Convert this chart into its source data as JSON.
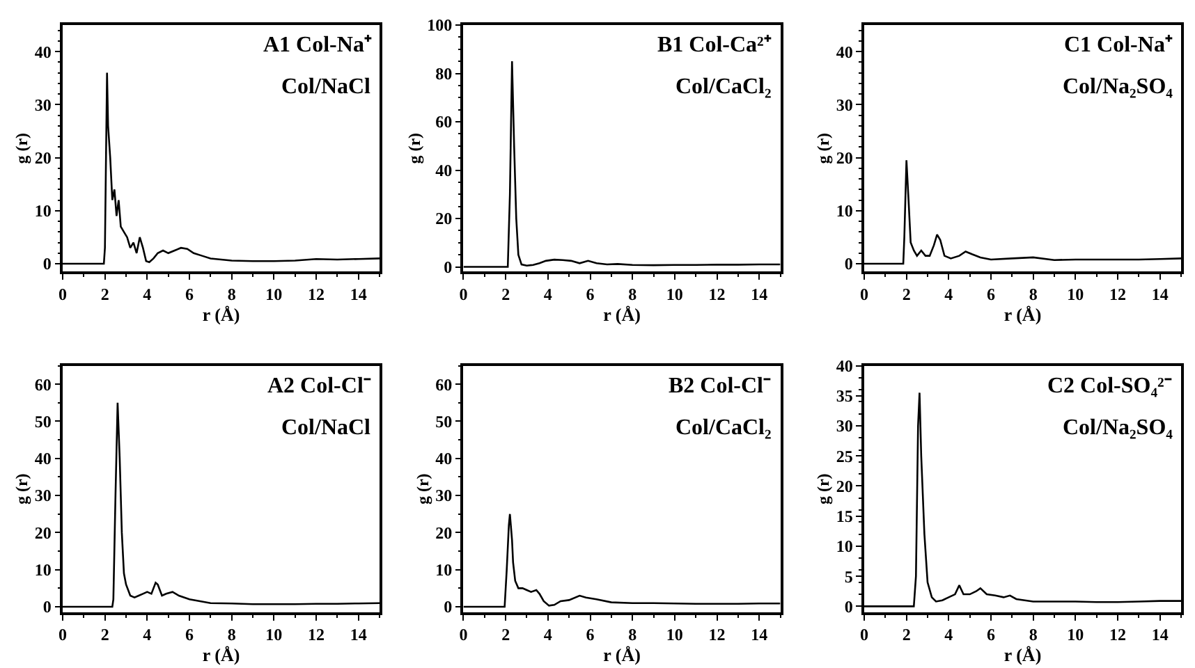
{
  "chart_data": [
    {
      "type": "line",
      "annotations": [
        "A1 Col-Na⁺",
        "Col/NaCl"
      ],
      "xlabel": "r (Å)",
      "ylabel": "g (r)",
      "xlim": [
        0,
        15
      ],
      "xticks": [
        0,
        2,
        4,
        6,
        8,
        10,
        12,
        14
      ],
      "ylim": [
        -1.5,
        45
      ],
      "yticks": [
        0,
        10,
        20,
        30,
        40
      ],
      "x": [
        0,
        1.95,
        2.0,
        2.1,
        2.15,
        2.25,
        2.35,
        2.45,
        2.55,
        2.65,
        2.75,
        2.9,
        3.05,
        3.2,
        3.35,
        3.5,
        3.65,
        3.8,
        3.95,
        4.1,
        4.3,
        4.5,
        4.75,
        5.0,
        5.3,
        5.6,
        5.9,
        6.2,
        6.6,
        7.0,
        7.5,
        8.0,
        9,
        10,
        11,
        12,
        13,
        14,
        15
      ],
      "series": [
        {
          "color": "#000000",
          "values": [
            0,
            0,
            3,
            36,
            26,
            20,
            12,
            14,
            9,
            12,
            7,
            6,
            5,
            3,
            4,
            2,
            5,
            3,
            0.5,
            0.3,
            1,
            2,
            2.5,
            2,
            2.5,
            3,
            2.8,
            2,
            1.5,
            1,
            0.8,
            0.6,
            0.5,
            0.5,
            0.6,
            0.9,
            0.8,
            0.9,
            1.0
          ]
        }
      ]
    },
    {
      "type": "line",
      "annotations": [
        "B1 Col-Ca²⁺",
        "Col/CaCl₂"
      ],
      "xlabel": "r (Å)",
      "ylabel": "g (r)",
      "xlim": [
        0,
        15
      ],
      "xticks": [
        0,
        2,
        4,
        6,
        8,
        10,
        12,
        14
      ],
      "ylim": [
        -2,
        100
      ],
      "yticks": [
        0,
        20,
        40,
        60,
        80,
        100
      ],
      "x": [
        0,
        2.1,
        2.2,
        2.3,
        2.4,
        2.5,
        2.6,
        2.75,
        3.0,
        3.3,
        3.6,
        3.9,
        4.3,
        4.7,
        5.1,
        5.5,
        5.9,
        6.3,
        6.8,
        7.3,
        8,
        9,
        10,
        11,
        12,
        13,
        14,
        15
      ],
      "series": [
        {
          "color": "#000000",
          "values": [
            0,
            0,
            30,
            85,
            50,
            20,
            5,
            1,
            0.5,
            0.8,
            1.5,
            2.5,
            3,
            2.8,
            2.5,
            1.5,
            2.5,
            1.5,
            1,
            1.2,
            0.8,
            0.7,
            0.8,
            0.8,
            0.9,
            0.9,
            1,
            1
          ]
        }
      ]
    },
    {
      "type": "line",
      "annotations": [
        "C1 Col-Na⁺",
        "Col/Na₂SO₄"
      ],
      "xlabel": "r (Å)",
      "ylabel": "g (r)",
      "xlim": [
        0,
        15
      ],
      "xticks": [
        0,
        2,
        4,
        6,
        8,
        10,
        12,
        14
      ],
      "ylim": [
        -1.5,
        45
      ],
      "yticks": [
        0,
        10,
        20,
        30,
        40
      ],
      "x": [
        0,
        1.85,
        1.9,
        2.0,
        2.1,
        2.2,
        2.35,
        2.5,
        2.7,
        2.9,
        3.1,
        3.3,
        3.45,
        3.6,
        3.8,
        4.1,
        4.5,
        4.8,
        5.1,
        5.5,
        6,
        7,
        8,
        9,
        10,
        11,
        12,
        13,
        14,
        15
      ],
      "series": [
        {
          "color": "#000000",
          "values": [
            0,
            0,
            5,
            19.5,
            12,
            4,
            2.5,
            1.5,
            2.5,
            1.5,
            1.5,
            3.5,
            5.5,
            4.5,
            1.5,
            1,
            1.5,
            2.3,
            1.8,
            1.2,
            0.8,
            1,
            1.2,
            0.7,
            0.8,
            0.8,
            0.8,
            0.8,
            0.9,
            1
          ]
        }
      ]
    },
    {
      "type": "line",
      "annotations": [
        "A2 Col-Cl⁻",
        "Col/NaCl"
      ],
      "xlabel": "r (Å)",
      "ylabel": "g (r)",
      "xlim": [
        0,
        15
      ],
      "xticks": [
        0,
        2,
        4,
        6,
        8,
        10,
        12,
        14
      ],
      "ylim": [
        -1.5,
        65
      ],
      "yticks": [
        0,
        10,
        20,
        30,
        40,
        50,
        60
      ],
      "x": [
        0,
        2.35,
        2.4,
        2.5,
        2.6,
        2.7,
        2.8,
        2.9,
        3.0,
        3.2,
        3.4,
        3.6,
        3.8,
        4.0,
        4.2,
        4.4,
        4.5,
        4.7,
        4.9,
        5.2,
        5.5,
        6,
        6.5,
        7,
        8,
        9,
        10,
        11,
        12,
        13,
        14,
        15
      ],
      "series": [
        {
          "color": "#000000",
          "values": [
            0,
            0,
            2,
            30,
            55,
            40,
            20,
            9,
            6,
            3,
            2.5,
            3,
            3.5,
            4,
            3.5,
            6.5,
            6,
            3,
            3.5,
            4,
            3,
            2,
            1.5,
            1,
            0.9,
            0.7,
            0.7,
            0.7,
            0.8,
            0.8,
            0.9,
            1
          ]
        }
      ]
    },
    {
      "type": "line",
      "annotations": [
        "B2 Col-Cl⁻",
        "Col/CaCl₂"
      ],
      "xlabel": "r (Å)",
      "ylabel": "g (r)",
      "xlim": [
        0,
        15
      ],
      "xticks": [
        0,
        2,
        4,
        6,
        8,
        10,
        12,
        14
      ],
      "ylim": [
        -1.5,
        65
      ],
      "yticks": [
        0,
        10,
        20,
        30,
        40,
        50,
        60
      ],
      "x": [
        0,
        1.95,
        2.05,
        2.15,
        2.2,
        2.3,
        2.35,
        2.45,
        2.6,
        2.8,
        3.0,
        3.2,
        3.45,
        3.6,
        3.8,
        4.05,
        4.3,
        4.6,
        5.0,
        5.5,
        5.8,
        6.3,
        7,
        8,
        9,
        10,
        11,
        12,
        13,
        14,
        15
      ],
      "series": [
        {
          "color": "#000000",
          "values": [
            0,
            0,
            10,
            22,
            25,
            18,
            12,
            7,
            5,
            5,
            4.5,
            4,
            4.5,
            3.5,
            1.5,
            0.3,
            0.5,
            1.5,
            1.8,
            3,
            2.5,
            2,
            1.2,
            1,
            1,
            0.9,
            0.8,
            0.8,
            0.8,
            0.9,
            0.9
          ]
        }
      ]
    },
    {
      "type": "line",
      "annotations": [
        "C2 Col-SO₄²⁻",
        "Col/Na₂SO₄"
      ],
      "xlabel": "r (Å)",
      "ylabel": "g (r)",
      "xlim": [
        0,
        15
      ],
      "xticks": [
        0,
        2,
        4,
        6,
        8,
        10,
        12,
        14
      ],
      "ylim": [
        -1,
        40
      ],
      "yticks": [
        0,
        5,
        10,
        15,
        20,
        25,
        30,
        35,
        40
      ],
      "x": [
        0,
        2.35,
        2.45,
        2.55,
        2.62,
        2.7,
        2.85,
        3.0,
        3.2,
        3.4,
        3.7,
        4.0,
        4.3,
        4.5,
        4.7,
        5.0,
        5.3,
        5.5,
        5.8,
        6.2,
        6.6,
        6.9,
        7.2,
        8,
        9,
        10,
        11,
        12,
        13,
        14,
        15
      ],
      "series": [
        {
          "color": "#000000",
          "values": [
            0,
            0,
            5,
            30,
            35.5,
            25,
            12,
            4,
            1.5,
            0.8,
            1,
            1.5,
            2,
            3.5,
            2,
            2,
            2.5,
            3,
            2,
            1.8,
            1.5,
            1.8,
            1.2,
            0.8,
            0.8,
            0.8,
            0.7,
            0.7,
            0.8,
            0.9,
            0.9
          ]
        }
      ]
    }
  ]
}
